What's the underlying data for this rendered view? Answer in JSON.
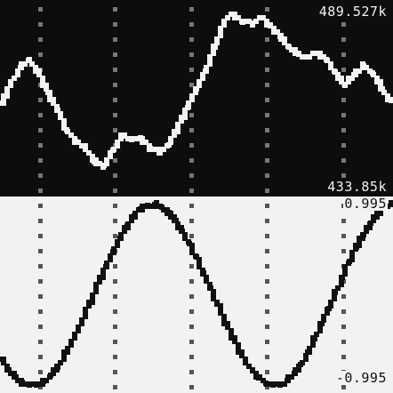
{
  "colors": {
    "top_background": "#0d0d0d",
    "top_trace": "#f2f2f2",
    "top_grid": "#777777",
    "bottom_background": "#f2f2f2",
    "bottom_trace": "#111111",
    "bottom_grid": "#555555"
  },
  "top_panel": {
    "max_label": "489.527k",
    "min_label": "433.85k"
  },
  "bottom_panel": {
    "max_label": "0.995",
    "min_label": "-0.995"
  },
  "chart_data": [
    {
      "type": "line",
      "title": "",
      "xlabel": "",
      "ylabel": "",
      "ylim": [
        433850,
        489527
      ],
      "grid": "dotted vertical",
      "series": [
        {
          "values": [
            460400,
            466900,
            471600,
            474000,
            470000,
            463700,
            458300,
            452000,
            448500,
            446600,
            442000,
            440800,
            445500,
            450200,
            449000,
            449500,
            446200,
            444900,
            447300,
            452800,
            459000,
            465000,
            470500,
            478000,
            486200,
            488400,
            486000,
            485600,
            487400,
            484800,
            481500,
            478000,
            475800,
            475000,
            476100,
            474100,
            470100,
            466200,
            469300,
            472300,
            469900,
            465000,
            461200
          ]
        }
      ]
    },
    {
      "type": "line",
      "title": "",
      "xlabel": "",
      "ylabel": "",
      "ylim": [
        -0.995,
        0.995
      ],
      "grid": "dotted vertical",
      "series": [
        {
          "values": [
            -0.7,
            -0.82,
            -0.9,
            -0.96,
            -0.99,
            -0.99,
            -0.95,
            -0.88,
            -0.79,
            -0.67,
            -0.53,
            -0.37,
            -0.2,
            -0.03,
            0.14,
            0.31,
            0.47,
            0.62,
            0.75,
            0.86,
            0.94,
            0.98,
            0.99,
            0.96,
            0.9,
            0.81,
            0.69,
            0.56,
            0.41,
            0.24,
            0.07,
            -0.1,
            -0.27,
            -0.43,
            -0.58,
            -0.71,
            -0.83,
            -0.91,
            -0.97,
            -0.99,
            -0.99,
            -0.94,
            -0.86,
            -0.76,
            -0.63,
            -0.48,
            -0.32,
            -0.15,
            0.02,
            0.19,
            0.36,
            0.52,
            0.66,
            0.78,
            0.88,
            0.95,
            0.99
          ]
        }
      ]
    }
  ]
}
